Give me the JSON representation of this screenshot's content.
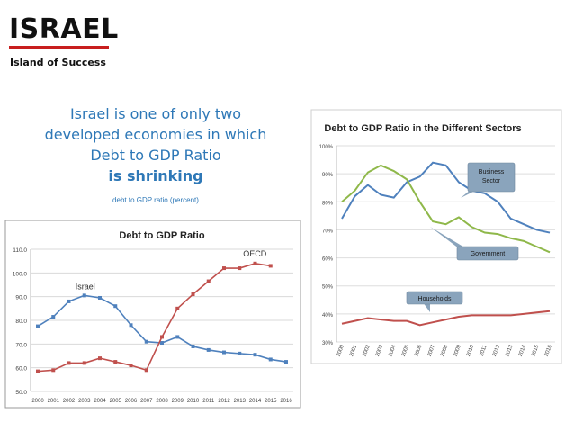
{
  "header": {
    "title": "ISRAEL",
    "subtitle": "Island of Success"
  },
  "headline": {
    "lines": [
      "Israel is one of only two",
      "developed economies in which",
      "Debt to GDP Ratio",
      "is shrinking"
    ],
    "caption": "debt to GDP ratio (percent)"
  },
  "colors": {
    "accent": "#c81e1e",
    "headline": "#2e78b7",
    "israel": "#4f81bd",
    "oecd": "#c0504d",
    "business": "#4f81bd",
    "government": "#8fb84a",
    "households": "#c0504d",
    "callout_fill": "#8aa4bc"
  },
  "chart_data": [
    {
      "type": "line",
      "title": "Debt to GDP Ratio",
      "xlabel": "",
      "ylabel": "",
      "categories": [
        "2000",
        "2001",
        "2002",
        "2003",
        "2004",
        "2005",
        "2006",
        "2007",
        "2008",
        "2009",
        "2010",
        "2011",
        "2012",
        "2013",
        "2014",
        "2015",
        "2016"
      ],
      "yticks": [
        "50.0",
        "60.0",
        "70.0",
        "80.0",
        "90.0",
        "100.0",
        "110.0"
      ],
      "ylim": [
        50,
        110
      ],
      "grid": true,
      "series": [
        {
          "name": "Israel",
          "values": [
            77.5,
            81.5,
            88,
            90.5,
            89.5,
            86,
            78,
            71,
            70.5,
            73,
            69,
            67.5,
            66.5,
            66,
            65.5,
            63.5,
            62.5
          ]
        },
        {
          "name": "OECD",
          "values": [
            58.5,
            59,
            62,
            62,
            64,
            62.5,
            61,
            59,
            73,
            85,
            91,
            96.5,
            102,
            102,
            104,
            103,
            null
          ]
        }
      ],
      "annotations": [
        "Israel",
        "OECD"
      ]
    },
    {
      "type": "line",
      "title": "Debt to GDP Ratio in the Different Sectors",
      "xlabel": "",
      "ylabel": "",
      "categories": [
        "2000",
        "2001",
        "2002",
        "2003",
        "2004",
        "2005",
        "2006",
        "2007",
        "2008",
        "2009",
        "2010",
        "2011",
        "2012",
        "2013",
        "2014",
        "2015",
        "2016"
      ],
      "yticks": [
        "30%",
        "40%",
        "50%",
        "60%",
        "70%",
        "80%",
        "90%",
        "100%"
      ],
      "ylim": [
        30,
        100
      ],
      "grid": true,
      "series": [
        {
          "name": "Business Sector",
          "values": [
            74,
            82,
            86,
            82.5,
            81.5,
            87,
            89,
            94,
            93,
            87,
            84,
            83,
            80,
            74,
            72,
            70,
            69
          ]
        },
        {
          "name": "Government",
          "values": [
            80,
            84,
            90.5,
            93,
            91,
            88,
            80,
            73,
            72,
            74.5,
            71,
            69,
            68.5,
            67,
            66,
            64,
            62
          ]
        },
        {
          "name": "Households",
          "values": [
            36.5,
            37.5,
            38.5,
            38,
            37.5,
            37.5,
            36,
            37,
            38,
            39,
            39.5,
            39.5,
            39.5,
            39.5,
            40,
            40.5,
            41
          ]
        }
      ],
      "annotations": [
        "Business Sector",
        "Government",
        "Households"
      ]
    }
  ]
}
